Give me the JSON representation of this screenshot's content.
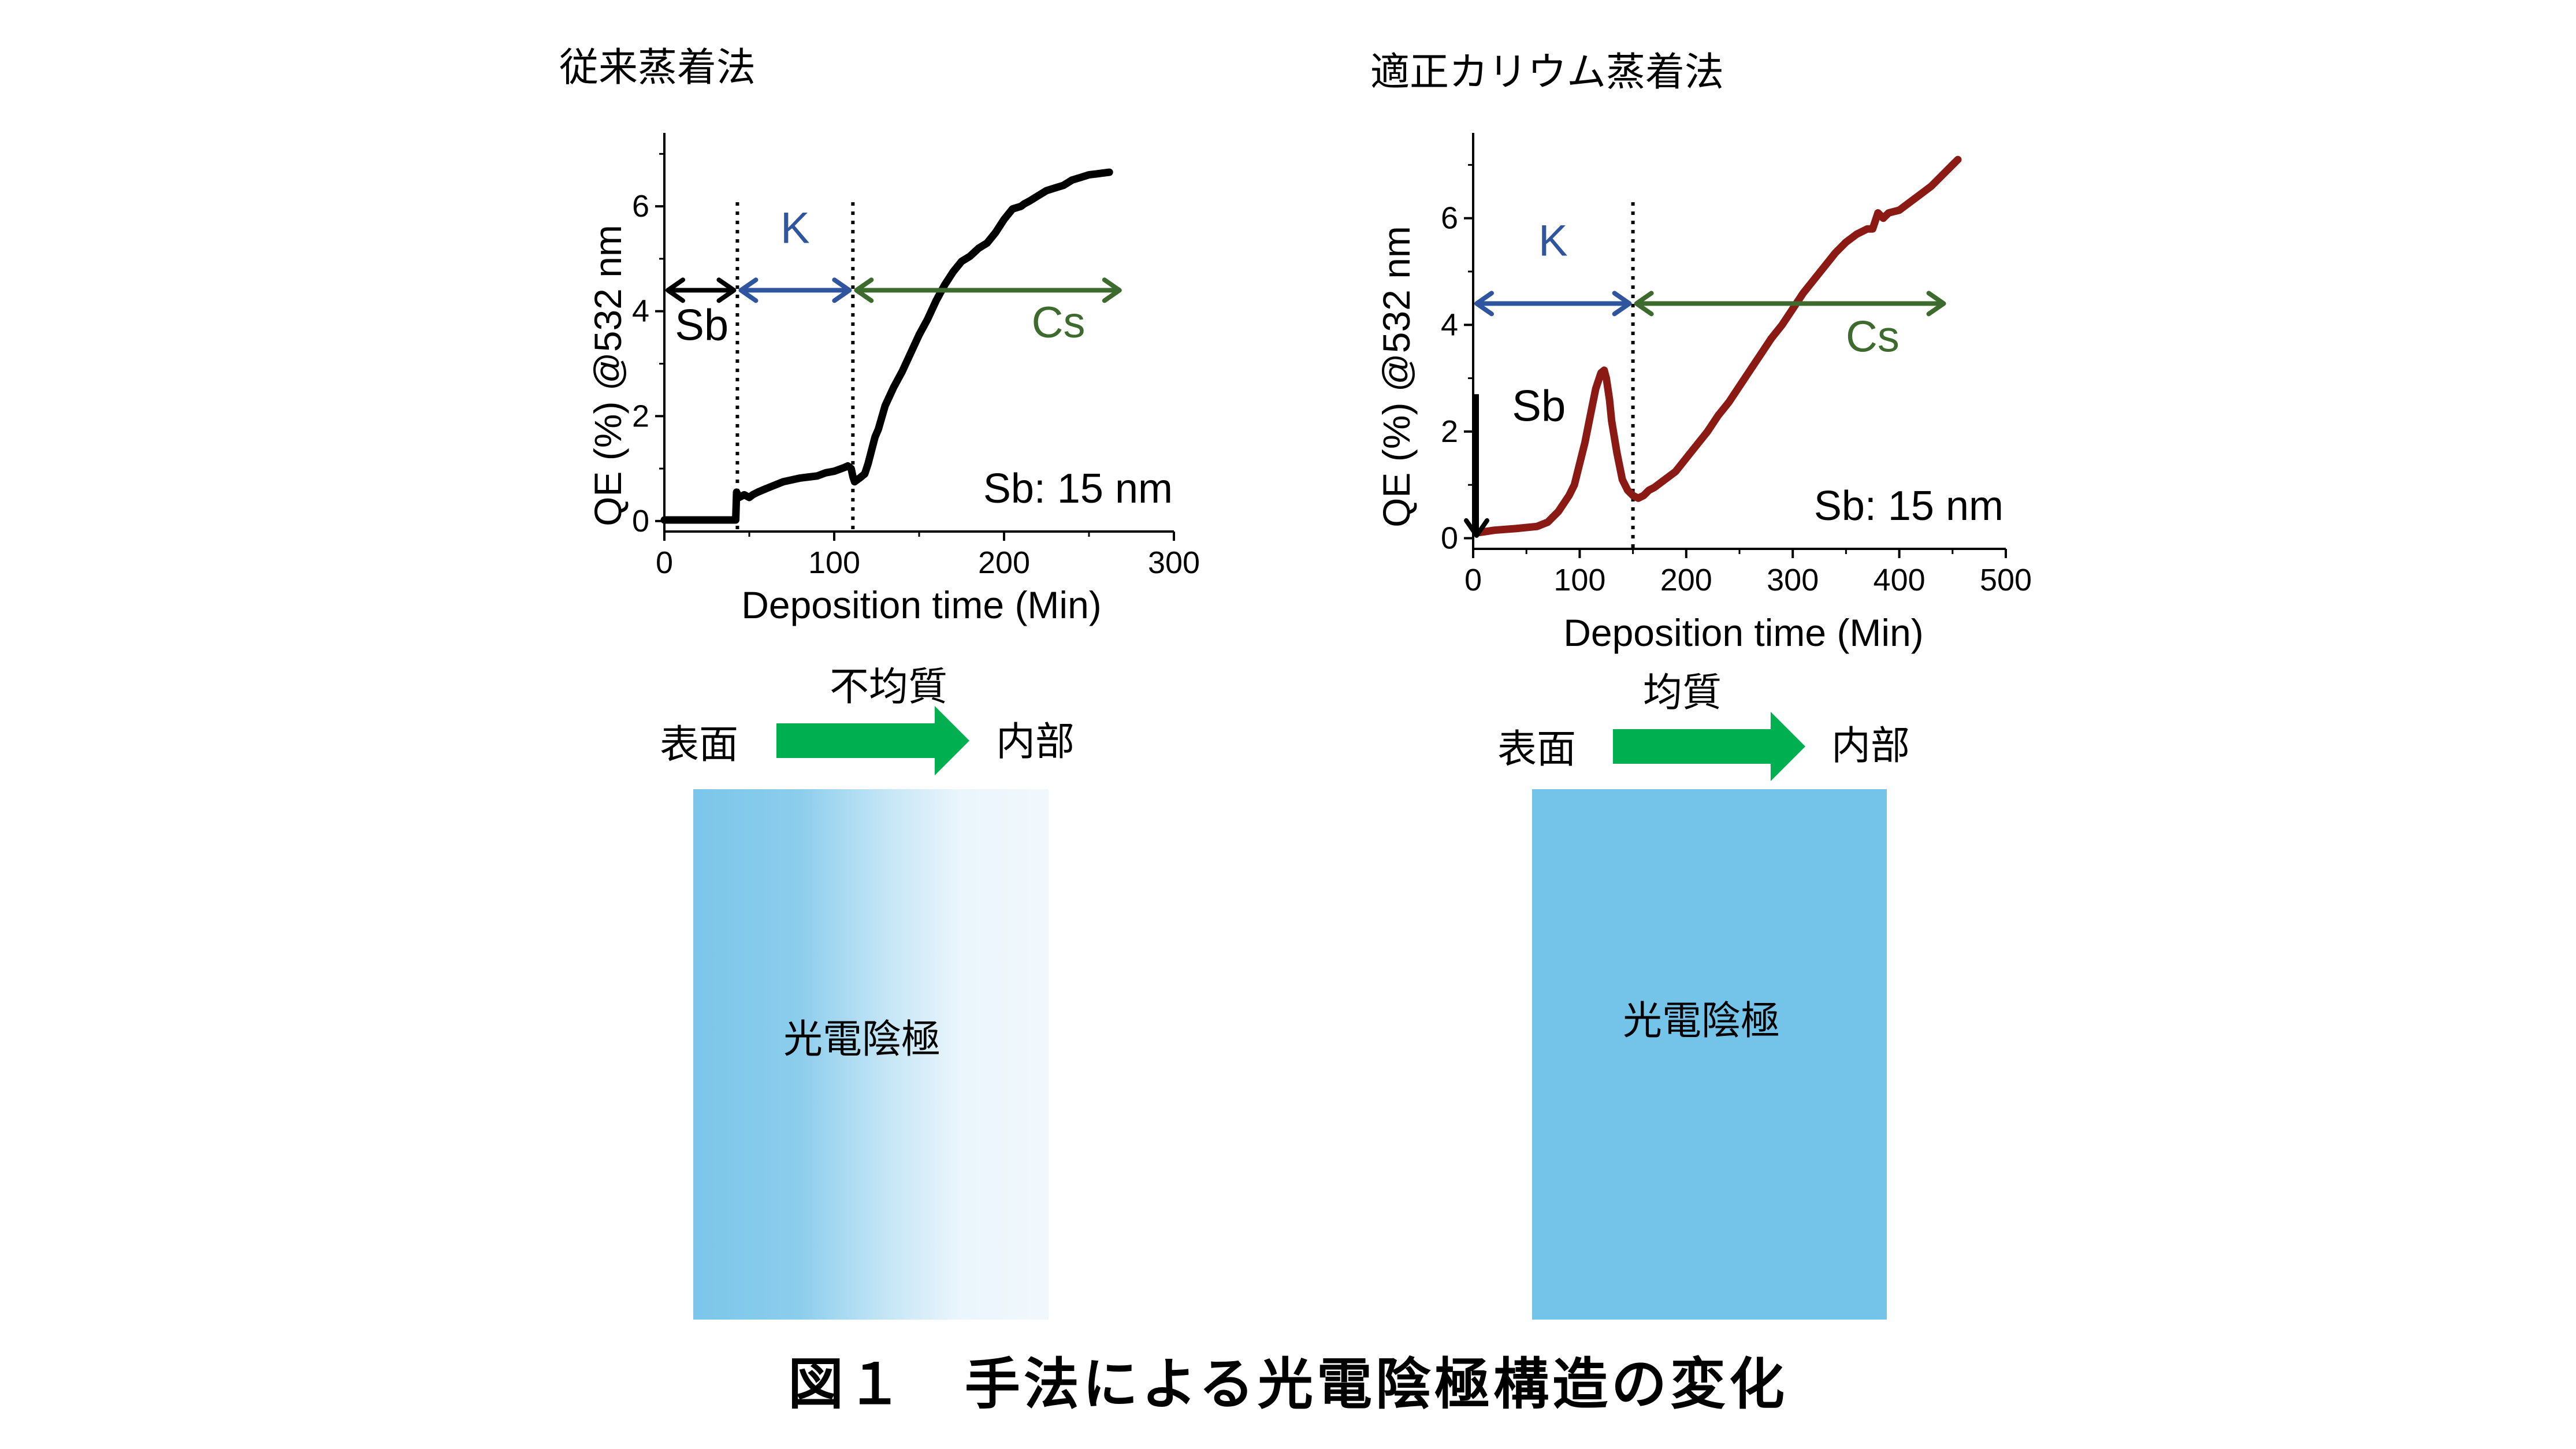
{
  "panels": [
    {
      "title": "従来蒸着法",
      "chart": {
        "type": "line",
        "xlabel": "Deposition time (Min)",
        "ylabel": "QE (%) @532 nm",
        "xlim": [
          0,
          300
        ],
        "ylim": [
          -0.2,
          7.4
        ],
        "xticks": [
          "0",
          "100",
          "200",
          "300"
        ],
        "yticks": [
          "0",
          "2",
          "4",
          "6"
        ],
        "series": [
          {
            "color": "#000000",
            "x": [
              0,
              20,
              42,
              42.5,
              44,
              47,
              50,
              52,
              55,
              60,
              70,
              80,
              90,
              95,
              100,
              106,
              108,
              110,
              111,
              112,
              115,
              118,
              120,
              122,
              124,
              126,
              130,
              135,
              140,
              145,
              150,
              155,
              160,
              165,
              170,
              175,
              180,
              185,
              190,
              195,
              200,
              205,
              210,
              212,
              215,
              220,
              225,
              230,
              235,
              240,
              245,
              250,
              255,
              262
            ],
            "y": [
              0.02,
              0.02,
              0.02,
              0.55,
              0.45,
              0.5,
              0.45,
              0.5,
              0.55,
              0.62,
              0.75,
              0.82,
              0.86,
              0.92,
              0.95,
              1.02,
              1.05,
              1.0,
              0.85,
              0.75,
              0.82,
              0.9,
              1.1,
              1.35,
              1.6,
              1.75,
              2.2,
              2.55,
              2.85,
              3.2,
              3.55,
              3.85,
              4.2,
              4.5,
              4.75,
              4.95,
              5.05,
              5.2,
              5.3,
              5.5,
              5.75,
              5.95,
              6.0,
              6.05,
              6.1,
              6.2,
              6.3,
              6.35,
              6.4,
              6.5,
              6.55,
              6.6,
              6.62,
              6.65
            ]
          }
        ],
        "dividers": [
          43,
          111
        ],
        "arrows": [
          {
            "label": "Sb",
            "x1": 0,
            "x2": 43,
            "y": 4.4,
            "color": "#000000",
            "label_x": 22,
            "label_y": 3.45
          },
          {
            "label": "K",
            "x1": 43,
            "x2": 111,
            "y": 4.4,
            "color": "#2e559e",
            "label_x": 77,
            "label_y": 5.3
          },
          {
            "label": "Cs",
            "x1": 111,
            "x2": 270,
            "y": 4.4,
            "color": "#3d6b2e",
            "label_x": 232,
            "label_y": 3.5
          }
        ],
        "annotation": "Sb: 15 nm"
      }
    },
    {
      "title": "適正カリウム蒸着法",
      "chart": {
        "type": "line",
        "xlabel": "Deposition time (Min)",
        "ylabel": "QE (%) @532 nm",
        "xlim": [
          0,
          500
        ],
        "ylim": [
          -0.2,
          7.6
        ],
        "xticks": [
          "0",
          "100",
          "200",
          "300",
          "400",
          "500"
        ],
        "yticks": [
          "0",
          "2",
          "4",
          "6"
        ],
        "series": [
          {
            "color": "#8b1a14",
            "x": [
              3,
              10,
              20,
              40,
              60,
              70,
              80,
              90,
              95,
              100,
              105,
              110,
              115,
              120,
              123,
              125,
              128,
              130,
              135,
              140,
              145,
              150,
              155,
              160,
              165,
              170,
              180,
              190,
              200,
              210,
              220,
              230,
              240,
              250,
              260,
              270,
              280,
              290,
              300,
              310,
              320,
              330,
              340,
              350,
              360,
              370,
              375,
              380,
              385,
              390,
              400,
              410,
              420,
              430,
              440,
              450,
              455
            ],
            "y": [
              0.1,
              0.12,
              0.15,
              0.18,
              0.22,
              0.3,
              0.5,
              0.8,
              1.0,
              1.4,
              1.8,
              2.3,
              2.8,
              3.1,
              3.15,
              3.0,
              2.6,
              2.2,
              1.6,
              1.1,
              0.9,
              0.8,
              0.75,
              0.8,
              0.9,
              0.95,
              1.1,
              1.25,
              1.5,
              1.75,
              2.0,
              2.3,
              2.55,
              2.85,
              3.15,
              3.45,
              3.75,
              4.0,
              4.3,
              4.6,
              4.85,
              5.1,
              5.35,
              5.55,
              5.7,
              5.8,
              5.8,
              6.1,
              6.0,
              6.1,
              6.15,
              6.3,
              6.45,
              6.6,
              6.8,
              7.0,
              7.1
            ]
          }
        ],
        "dividers": [
          150
        ],
        "arrows": [
          {
            "label": "K",
            "x1": 0,
            "x2": 150,
            "y": 4.4,
            "color": "#2e559e",
            "label_x": 75,
            "label_y": 5.3
          },
          {
            "label": "Cs",
            "x1": 150,
            "x2": 445,
            "y": 4.4,
            "color": "#3d6b2e",
            "label_x": 375,
            "label_y": 3.5
          }
        ],
        "vertical_arrow": {
          "label": "Sb",
          "x": 0,
          "y1": 2.7,
          "y2": 0.05,
          "color": "#000000",
          "label_x": 40,
          "label_y": 2.2
        },
        "annotation": "Sb: 15 nm"
      }
    }
  ],
  "structures": [
    {
      "direction_label": "不均質",
      "surface_label": "表面",
      "interior_label": "内部",
      "cathode_label": "光電陰極",
      "uniform": false,
      "base_color": "#74c3e8",
      "arrow_color": "#00b050"
    },
    {
      "direction_label": "均質",
      "surface_label": "表面",
      "interior_label": "内部",
      "cathode_label": "光電陰極",
      "uniform": true,
      "base_color": "#74c3e8",
      "arrow_color": "#00b050"
    }
  ],
  "caption": "図１　手法による光電陰極構造の変化"
}
